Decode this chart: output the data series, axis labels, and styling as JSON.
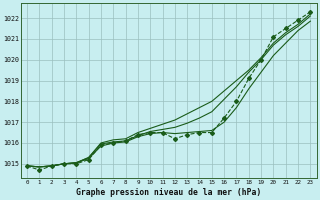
{
  "bg_color": "#c8eef0",
  "grid_color": "#9bbfbf",
  "line_color": "#1a5c1a",
  "xlabel": "Graphe pression niveau de la mer (hPa)",
  "xlim": [
    -0.5,
    23.5
  ],
  "ylim": [
    1014.3,
    1022.7
  ],
  "yticks": [
    1015,
    1016,
    1017,
    1018,
    1019,
    1020,
    1021,
    1022
  ],
  "xticks": [
    0,
    1,
    2,
    3,
    4,
    5,
    6,
    7,
    8,
    9,
    10,
    11,
    12,
    13,
    14,
    15,
    16,
    17,
    18,
    19,
    20,
    21,
    22,
    23
  ],
  "main_x": [
    0,
    1,
    2,
    3,
    4,
    5,
    6,
    7,
    8,
    9,
    10,
    11,
    12,
    13,
    14,
    15,
    16,
    17,
    18,
    19,
    20,
    21,
    22,
    23
  ],
  "main_y": [
    1014.9,
    1014.7,
    1014.9,
    1015.0,
    1015.0,
    1015.2,
    1015.9,
    1016.0,
    1016.1,
    1016.4,
    1016.5,
    1016.5,
    1016.2,
    1016.4,
    1016.5,
    1016.5,
    1017.2,
    1018.0,
    1019.1,
    1020.0,
    1021.1,
    1021.5,
    1021.9,
    1022.3
  ],
  "line2_x": [
    0,
    1,
    2,
    3,
    4,
    5,
    6,
    7,
    8,
    9,
    10,
    11,
    12,
    13,
    14,
    15,
    16,
    17,
    18,
    19,
    20,
    21,
    22,
    23
  ],
  "line2_y": [
    1014.9,
    1014.85,
    1014.9,
    1015.0,
    1015.05,
    1015.3,
    1016.0,
    1016.15,
    1016.2,
    1016.5,
    1016.7,
    1016.9,
    1017.1,
    1017.4,
    1017.7,
    1018.0,
    1018.5,
    1019.0,
    1019.5,
    1020.1,
    1020.8,
    1021.3,
    1021.7,
    1022.2
  ],
  "line3_x": [
    0,
    1,
    2,
    3,
    4,
    5,
    6,
    7,
    8,
    9,
    10,
    11,
    12,
    13,
    14,
    15,
    16,
    17,
    18,
    19,
    20,
    21,
    22,
    23
  ],
  "line3_y": [
    1014.9,
    1014.85,
    1014.9,
    1015.0,
    1015.05,
    1015.3,
    1015.95,
    1016.05,
    1016.1,
    1016.35,
    1016.55,
    1016.65,
    1016.75,
    1016.95,
    1017.2,
    1017.5,
    1018.1,
    1018.7,
    1019.4,
    1020.0,
    1020.7,
    1021.2,
    1021.6,
    1022.1
  ],
  "line4_x": [
    0,
    1,
    2,
    3,
    4,
    5,
    6,
    7,
    8,
    9,
    10,
    11,
    12,
    13,
    14,
    15,
    16,
    17,
    18,
    19,
    20,
    21,
    22,
    23
  ],
  "line4_y": [
    1014.9,
    1014.85,
    1014.9,
    1015.0,
    1015.05,
    1015.25,
    1015.85,
    1016.0,
    1016.05,
    1016.3,
    1016.45,
    1016.5,
    1016.45,
    1016.5,
    1016.55,
    1016.6,
    1017.0,
    1017.7,
    1018.6,
    1019.4,
    1020.2,
    1020.8,
    1021.4,
    1021.85
  ]
}
